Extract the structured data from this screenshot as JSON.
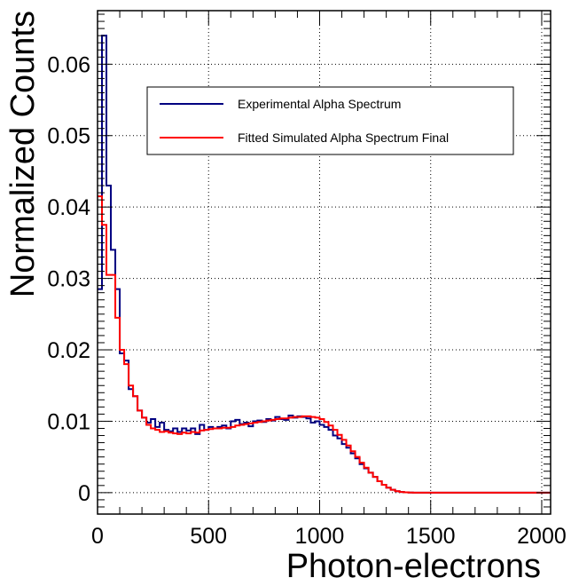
{
  "chart_data": {
    "type": "line",
    "style": "step-histogram",
    "title": "",
    "xlabel": "Photon-electrons",
    "ylabel": "Normalized Counts",
    "xlim": [
      0,
      2040
    ],
    "ylim": [
      -0.003,
      0.0675
    ],
    "x_ticks": [
      0,
      500,
      1000,
      1500,
      2000
    ],
    "x_tick_labels": [
      "0",
      "500",
      "1000",
      "1500",
      "2000"
    ],
    "y_ticks": [
      0,
      0.01,
      0.02,
      0.03,
      0.04,
      0.05,
      0.06
    ],
    "y_tick_labels": [
      "0",
      "0.01",
      "0.02",
      "0.03",
      "0.04",
      "0.05",
      "0.06"
    ],
    "grid": true,
    "legend_position": "top-right",
    "bin_width": 20,
    "x": [
      0,
      20,
      40,
      60,
      80,
      100,
      120,
      140,
      160,
      180,
      200,
      220,
      240,
      260,
      280,
      300,
      320,
      340,
      360,
      380,
      400,
      420,
      440,
      460,
      480,
      500,
      520,
      540,
      560,
      580,
      600,
      620,
      640,
      660,
      680,
      700,
      720,
      740,
      760,
      780,
      800,
      820,
      840,
      860,
      880,
      900,
      920,
      940,
      960,
      980,
      1000,
      1020,
      1040,
      1060,
      1080,
      1100,
      1120,
      1140,
      1160,
      1180,
      1200,
      1220,
      1240,
      1260,
      1280,
      1300,
      1320,
      1340,
      1360,
      1380,
      1400,
      1420,
      1440,
      1460,
      1480,
      1500,
      1520,
      1540,
      1560,
      1580,
      1600,
      1620,
      1640,
      1660,
      1680,
      1700,
      1720,
      1740,
      1760,
      1780,
      1800,
      1820,
      1840,
      1860,
      1880,
      1900,
      1920,
      1940,
      1960,
      1980,
      2000,
      2020
    ],
    "series": [
      {
        "name": "Experimental Alpha Spectrum",
        "color": "#000080",
        "values": [
          0.0285,
          0.064,
          0.043,
          0.034,
          0.0285,
          0.0195,
          0.0185,
          0.0145,
          0.0135,
          0.0115,
          0.0105,
          0.0098,
          0.0103,
          0.0092,
          0.0098,
          0.0088,
          0.0086,
          0.009,
          0.0085,
          0.009,
          0.0087,
          0.009,
          0.0082,
          0.0095,
          0.0088,
          0.0092,
          0.009,
          0.0092,
          0.0094,
          0.009,
          0.01,
          0.0102,
          0.0096,
          0.0098,
          0.0093,
          0.01,
          0.0101,
          0.0099,
          0.0103,
          0.0101,
          0.0106,
          0.0103,
          0.0102,
          0.0108,
          0.0105,
          0.0107,
          0.0106,
          0.0104,
          0.0098,
          0.01,
          0.0095,
          0.0092,
          0.0088,
          0.008,
          0.0076,
          0.0068,
          0.0063,
          0.0055,
          0.0048,
          0.004,
          0.0034,
          0.0028,
          0.0022,
          0.0016,
          0.0011,
          0.0007,
          0.0004,
          0.0002,
          0.0001,
          5e-05,
          2e-05,
          0,
          0,
          0,
          0,
          0,
          0,
          0,
          0,
          0,
          0,
          0,
          0,
          0,
          0,
          0,
          0,
          0,
          0,
          0,
          0,
          0,
          0,
          0,
          0,
          0,
          0,
          0,
          0,
          0,
          0,
          0
        ]
      },
      {
        "name": "Fitted Simulated Alpha Spectrum Final",
        "color": "#ff0000",
        "values": [
          0.0415,
          0.0375,
          0.0305,
          0.0305,
          0.0245,
          0.02,
          0.018,
          0.015,
          0.0135,
          0.0115,
          0.0105,
          0.0095,
          0.009,
          0.0088,
          0.0085,
          0.0086,
          0.0084,
          0.0083,
          0.0082,
          0.0084,
          0.0083,
          0.0085,
          0.0084,
          0.0087,
          0.0088,
          0.0089,
          0.009,
          0.009,
          0.0091,
          0.0091,
          0.0092,
          0.0094,
          0.0095,
          0.0096,
          0.0097,
          0.0098,
          0.0099,
          0.01,
          0.0101,
          0.0102,
          0.0103,
          0.0104,
          0.0104,
          0.0105,
          0.0106,
          0.0106,
          0.0107,
          0.0107,
          0.0106,
          0.0105,
          0.0103,
          0.0099,
          0.0094,
          0.0088,
          0.0081,
          0.0074,
          0.0066,
          0.0058,
          0.005,
          0.0042,
          0.0035,
          0.0028,
          0.0022,
          0.0016,
          0.0011,
          0.0007,
          0.0004,
          0.0002,
          0.0001,
          5e-05,
          2e-05,
          0,
          0,
          0,
          0,
          0,
          0,
          0,
          0,
          0,
          0,
          0,
          0,
          0,
          0,
          0,
          0,
          0,
          0,
          0,
          0,
          0,
          0,
          0,
          0,
          0,
          0,
          0,
          0,
          0,
          0,
          0
        ]
      }
    ]
  }
}
